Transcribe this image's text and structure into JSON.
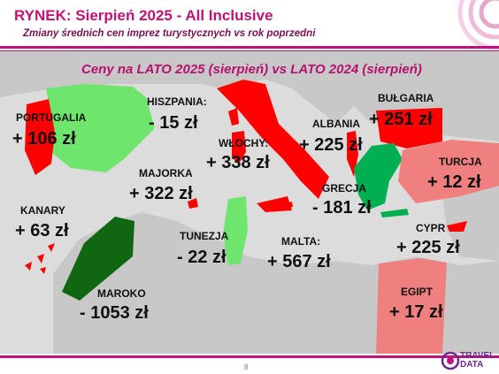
{
  "header": {
    "title": "RYNEK: Sierpień 2025 - All Inclusive",
    "subtitle": "Zmiany średnich cen imprez turystycznych vs rok poprzedni"
  },
  "map": {
    "title": "Ceny na LATO 2025 (sierpień) vs  LATO 2024 (sierpień)",
    "colors": {
      "sea": "#dcdcdc",
      "land": "#c8c8c8",
      "red": "#ff0000",
      "light_green": "#6ee66e",
      "green": "#00b050",
      "dark_green": "#116611",
      "salmon": "#f08080",
      "accent": "#c0127a"
    },
    "destinations": [
      {
        "name": "PORTUGALIA",
        "value": "+ 106 zł",
        "color": "red"
      },
      {
        "name": "HISZPANIA:",
        "value": "- 15 zł",
        "color": "light_green"
      },
      {
        "name": "WŁOCHY:",
        "value": "+ 338 zł",
        "color": "red"
      },
      {
        "name": "ALBANIA",
        "value": "+ 225 zł",
        "color": "red"
      },
      {
        "name": "BUŁGARIA",
        "value": "+ 251 zł",
        "color": "red"
      },
      {
        "name": "TURCJA",
        "value": "+ 12 zł",
        "color": "salmon"
      },
      {
        "name": "MAJORKA",
        "value": "+ 322 zł",
        "color": "red"
      },
      {
        "name": "GRECJA",
        "value": "- 181 zł",
        "color": "green"
      },
      {
        "name": "KANARY",
        "value": "+ 63 zł",
        "color": "red"
      },
      {
        "name": "CYPR",
        "value": "+ 225 zł",
        "color": "red"
      },
      {
        "name": "TUNEZJA",
        "value": "- 22 zł",
        "color": "light_green"
      },
      {
        "name": "MALTA:",
        "value": "+ 567 zł",
        "color": "red"
      },
      {
        "name": "MAROKO",
        "value": "- 1053 zł",
        "color": "dark_green"
      },
      {
        "name": "EGIPT",
        "value": "+ 17 zł",
        "color": "salmon"
      }
    ]
  },
  "footer": {
    "page_number": "8",
    "logo_line1": "TRAVEL",
    "logo_line2": "DATA"
  }
}
